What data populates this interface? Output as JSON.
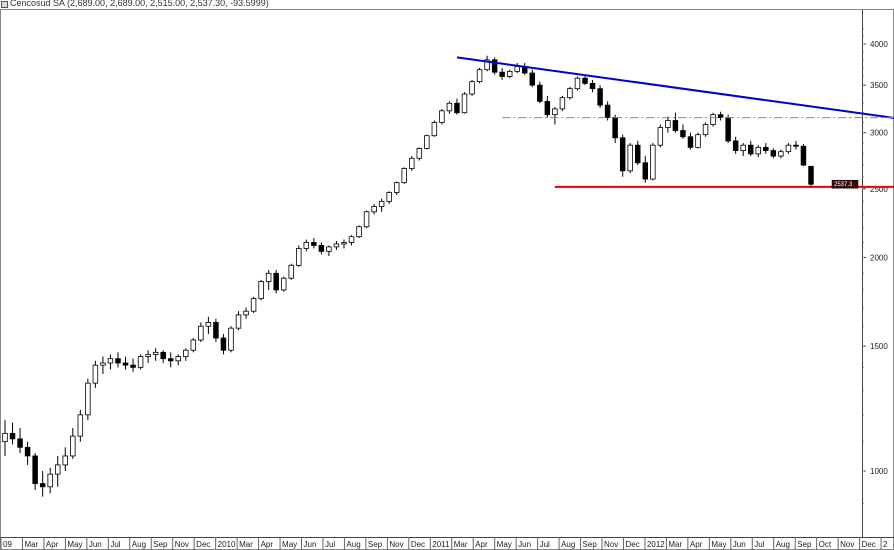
{
  "title": "Cencosud SA (2,689.00, 2,689.00, 2,515.00, 2,537.30, -93.5999)",
  "chart_data": {
    "type": "candlestick",
    "scale": "log",
    "ylim": [
      850,
      4300
    ],
    "y_ticks": [
      1000,
      1500,
      2000,
      2500,
      3000,
      3500,
      4000
    ],
    "last_price": 2537.3,
    "last_price_label": "2537.3",
    "x_ticks": [
      "09",
      "Mar",
      "Apr",
      "May",
      "Jun",
      "Jul",
      "Aug",
      "Sep",
      "Nov",
      "Dec",
      "2010",
      "Mar",
      "Apr",
      "May",
      "Jun",
      "Jul",
      "Aug",
      "Sep",
      "Nov",
      "Dec",
      "2011",
      "Mar",
      "Apr",
      "May",
      "Jun",
      "Jul",
      "Aug",
      "Sep",
      "Nov",
      "Dec",
      "2012",
      "Mar",
      "Apr",
      "May",
      "Jun",
      "Jul",
      "Aug",
      "Sep",
      "Oct",
      "Nov",
      "Dec",
      "2"
    ],
    "candles": [
      [
        1100,
        1180,
        1050,
        1130
      ],
      [
        1130,
        1170,
        1090,
        1110
      ],
      [
        1110,
        1150,
        1060,
        1080
      ],
      [
        1080,
        1100,
        1020,
        1050
      ],
      [
        1050,
        1060,
        940,
        960
      ],
      [
        960,
        1000,
        920,
        950
      ],
      [
        950,
        1010,
        930,
        990
      ],
      [
        990,
        1050,
        950,
        1020
      ],
      [
        1020,
        1080,
        1000,
        1050
      ],
      [
        1050,
        1150,
        1040,
        1120
      ],
      [
        1120,
        1220,
        1100,
        1200
      ],
      [
        1200,
        1350,
        1180,
        1330
      ],
      [
        1330,
        1430,
        1310,
        1410
      ],
      [
        1410,
        1450,
        1370,
        1420
      ],
      [
        1420,
        1460,
        1390,
        1440
      ],
      [
        1440,
        1470,
        1400,
        1420
      ],
      [
        1420,
        1450,
        1390,
        1410
      ],
      [
        1410,
        1440,
        1380,
        1400
      ],
      [
        1400,
        1460,
        1390,
        1450
      ],
      [
        1450,
        1480,
        1420,
        1460
      ],
      [
        1460,
        1490,
        1430,
        1470
      ],
      [
        1470,
        1480,
        1420,
        1440
      ],
      [
        1440,
        1470,
        1400,
        1430
      ],
      [
        1430,
        1460,
        1410,
        1450
      ],
      [
        1450,
        1490,
        1430,
        1480
      ],
      [
        1480,
        1540,
        1470,
        1530
      ],
      [
        1530,
        1620,
        1520,
        1600
      ],
      [
        1600,
        1650,
        1560,
        1620
      ],
      [
        1620,
        1640,
        1520,
        1540
      ],
      [
        1540,
        1560,
        1460,
        1480
      ],
      [
        1480,
        1600,
        1470,
        1590
      ],
      [
        1590,
        1680,
        1580,
        1660
      ],
      [
        1660,
        1700,
        1640,
        1680
      ],
      [
        1680,
        1760,
        1670,
        1750
      ],
      [
        1750,
        1860,
        1740,
        1850
      ],
      [
        1850,
        1920,
        1800,
        1900
      ],
      [
        1900,
        1920,
        1780,
        1800
      ],
      [
        1800,
        1880,
        1790,
        1870
      ],
      [
        1870,
        1960,
        1860,
        1950
      ],
      [
        1950,
        2080,
        1940,
        2060
      ],
      [
        2060,
        2120,
        2040,
        2100
      ],
      [
        2100,
        2130,
        2060,
        2080
      ],
      [
        2080,
        2100,
        2020,
        2040
      ],
      [
        2040,
        2080,
        2010,
        2070
      ],
      [
        2070,
        2110,
        2050,
        2090
      ],
      [
        2090,
        2120,
        2060,
        2100
      ],
      [
        2100,
        2150,
        2080,
        2140
      ],
      [
        2140,
        2220,
        2130,
        2210
      ],
      [
        2210,
        2330,
        2200,
        2320
      ],
      [
        2320,
        2380,
        2300,
        2360
      ],
      [
        2360,
        2420,
        2320,
        2400
      ],
      [
        2400,
        2480,
        2380,
        2470
      ],
      [
        2470,
        2560,
        2450,
        2550
      ],
      [
        2550,
        2680,
        2540,
        2670
      ],
      [
        2670,
        2780,
        2650,
        2760
      ],
      [
        2760,
        2860,
        2740,
        2850
      ],
      [
        2850,
        2980,
        2840,
        2970
      ],
      [
        2970,
        3120,
        2960,
        3100
      ],
      [
        3100,
        3240,
        3080,
        3220
      ],
      [
        3220,
        3320,
        3190,
        3300
      ],
      [
        3300,
        3350,
        3180,
        3200
      ],
      [
        3200,
        3420,
        3190,
        3400
      ],
      [
        3400,
        3560,
        3380,
        3540
      ],
      [
        3540,
        3700,
        3520,
        3680
      ],
      [
        3680,
        3850,
        3660,
        3800
      ],
      [
        3800,
        3830,
        3620,
        3650
      ],
      [
        3650,
        3700,
        3560,
        3600
      ],
      [
        3600,
        3680,
        3580,
        3660
      ],
      [
        3660,
        3760,
        3640,
        3720
      ],
      [
        3720,
        3760,
        3620,
        3640
      ],
      [
        3640,
        3680,
        3480,
        3500
      ],
      [
        3500,
        3540,
        3300,
        3320
      ],
      [
        3320,
        3380,
        3150,
        3180
      ],
      [
        3180,
        3260,
        3080,
        3240
      ],
      [
        3240,
        3380,
        3220,
        3360
      ],
      [
        3360,
        3480,
        3340,
        3460
      ],
      [
        3460,
        3600,
        3440,
        3580
      ],
      [
        3580,
        3620,
        3500,
        3520
      ],
      [
        3520,
        3560,
        3420,
        3460
      ],
      [
        3460,
        3500,
        3250,
        3280
      ],
      [
        3280,
        3320,
        3120,
        3150
      ],
      [
        3150,
        3180,
        2900,
        2950
      ],
      [
        2950,
        2980,
        2600,
        2650
      ],
      [
        2650,
        2900,
        2630,
        2880
      ],
      [
        2880,
        2920,
        2700,
        2720
      ],
      [
        2720,
        2780,
        2550,
        2580
      ],
      [
        2580,
        2900,
        2570,
        2880
      ],
      [
        2880,
        3080,
        2860,
        3050
      ],
      [
        3050,
        3160,
        3000,
        3120
      ],
      [
        3120,
        3200,
        3000,
        3020
      ],
      [
        3020,
        3080,
        2940,
        2960
      ],
      [
        2960,
        3000,
        2840,
        2860
      ],
      [
        2860,
        3000,
        2850,
        2980
      ],
      [
        2980,
        3100,
        2960,
        3080
      ],
      [
        3080,
        3200,
        3060,
        3180
      ],
      [
        3180,
        3210,
        3120,
        3150
      ],
      [
        3150,
        3180,
        2900,
        2920
      ],
      [
        2920,
        2960,
        2800,
        2830
      ],
      [
        2830,
        2900,
        2780,
        2880
      ],
      [
        2880,
        2920,
        2780,
        2800
      ],
      [
        2800,
        2880,
        2770,
        2860
      ],
      [
        2860,
        2900,
        2800,
        2830
      ],
      [
        2830,
        2850,
        2760,
        2780
      ],
      [
        2780,
        2840,
        2760,
        2820
      ],
      [
        2820,
        2900,
        2800,
        2880
      ],
      [
        2880,
        2920,
        2840,
        2870
      ],
      [
        2870,
        2890,
        2690,
        2700
      ],
      [
        2689,
        2689,
        2515,
        2537.3
      ]
    ],
    "lines": [
      {
        "name": "",
        "color": "#0000cc",
        "from": [
          60,
          3830
        ],
        "to": [
          134,
          2980
        ]
      },
      {
        "name": "",
        "color": "#e06060",
        "dashed": true,
        "from": [
          66,
          3150
        ],
        "to": [
          134,
          3150
        ]
      },
      {
        "name": "",
        "color": "#ee0000",
        "from": [
          73,
          2515
        ],
        "to": [
          134,
          2515
        ]
      }
    ]
  }
}
